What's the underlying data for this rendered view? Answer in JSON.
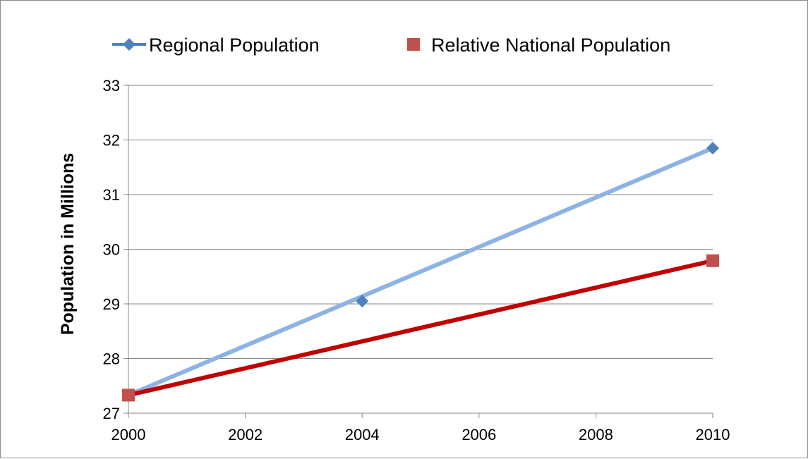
{
  "chart_data": {
    "type": "line",
    "title": "",
    "xlabel": "",
    "ylabel": "Population in Millions",
    "x": [
      2000,
      2004,
      2010
    ],
    "xlim": [
      2000,
      2010
    ],
    "xticks": [
      "2000",
      "2002",
      "2004",
      "2006",
      "2008",
      "2010"
    ],
    "ylim": [
      27,
      33
    ],
    "yticks": [
      "27",
      "28",
      "29",
      "30",
      "31",
      "32",
      "33"
    ],
    "grid": "horizontal",
    "legend_position": "top",
    "series": [
      {
        "name": "Regional Population",
        "marker": "diamond",
        "marker_color": "#4f81bd",
        "line_color": "#8db3e2",
        "points": [
          [
            2000,
            27.33
          ],
          [
            2004,
            29.05
          ],
          [
            2010,
            31.85
          ]
        ],
        "trendline": [
          [
            2000,
            27.33
          ],
          [
            2010,
            31.85
          ]
        ]
      },
      {
        "name": "Relative National Population",
        "marker": "square",
        "marker_color": "#c0504d",
        "line_color": "#c00000",
        "points": [
          [
            2000,
            27.33
          ],
          [
            2010,
            29.79
          ]
        ],
        "trendline": [
          [
            2000,
            27.33
          ],
          [
            2010,
            29.79
          ]
        ]
      }
    ]
  }
}
